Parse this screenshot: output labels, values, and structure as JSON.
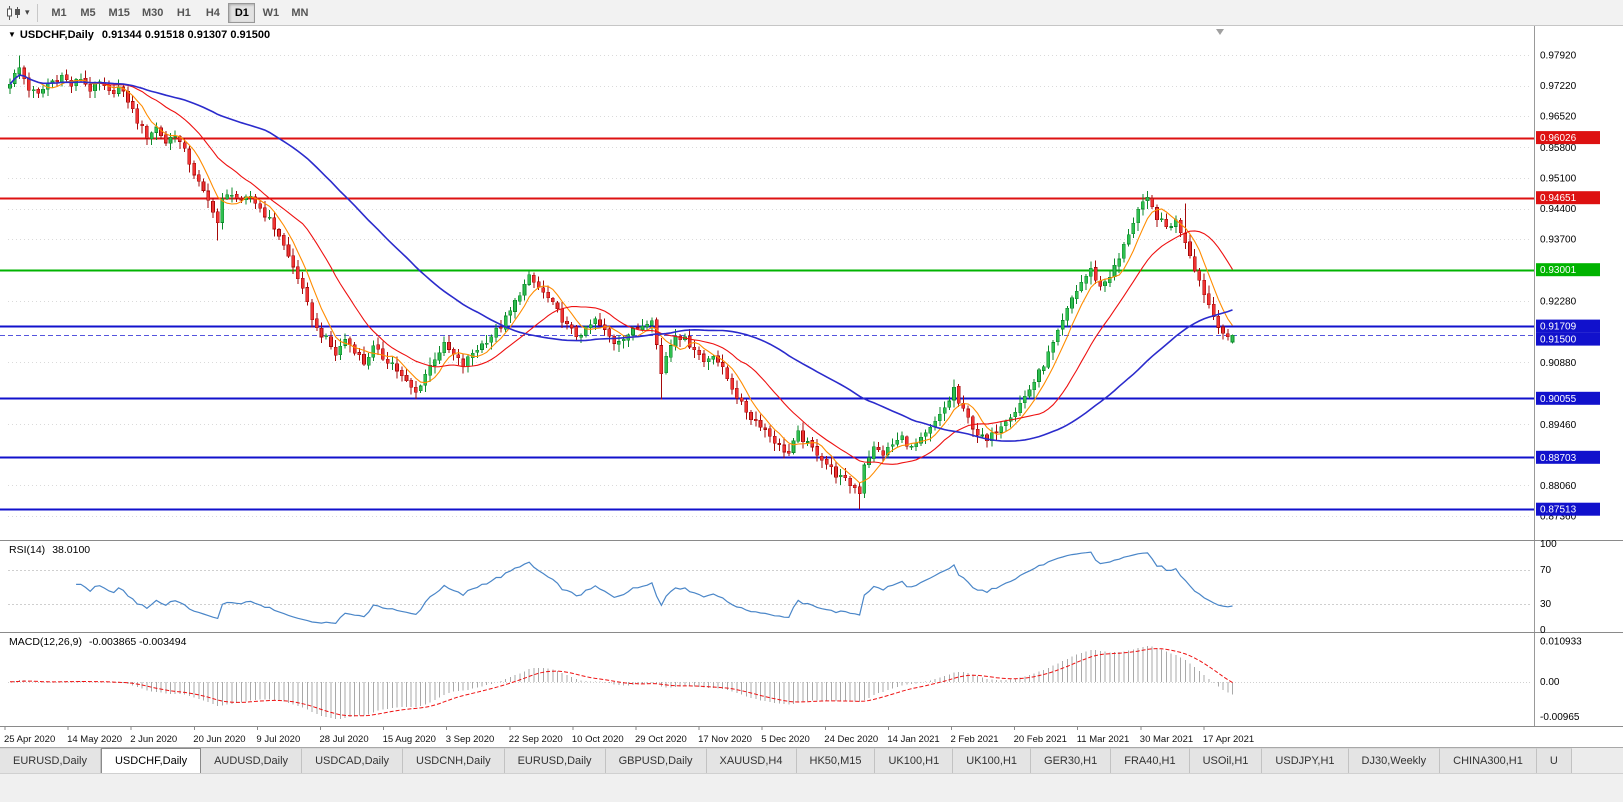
{
  "toolbar": {
    "timeframes": [
      "M1",
      "M5",
      "M15",
      "M30",
      "H1",
      "H4",
      "D1",
      "W1",
      "MN"
    ],
    "active_timeframe": "D1"
  },
  "chart_header": {
    "dropdown_caret": "▼",
    "symbol": "USDCHF,Daily",
    "ohlc_text": "0.91344 0.91518 0.91307 0.91500"
  },
  "rsi_panel": {
    "label": "RSI(14)",
    "value": "38.0100",
    "axis_labels": [
      "100",
      "70",
      "30",
      "0"
    ],
    "axis_values": [
      100,
      70,
      30,
      0
    ],
    "level_lines": [
      70,
      30
    ],
    "line_color": "#4a86c8"
  },
  "macd_panel": {
    "label": "MACD(12,26,9)",
    "values_text": "-0.003865 -0.003494",
    "axis_labels": [
      "0.010933",
      "0.00",
      "-0.00965"
    ],
    "axis_values": [
      0.010933,
      0,
      -0.00965
    ],
    "histogram_color": "#a9a9a9",
    "signal_color": "#ee1111"
  },
  "price_axis": {
    "labels": [
      "0.97920",
      "0.97220",
      "0.96520",
      "0.95800",
      "0.95100",
      "0.94400",
      "0.93700",
      "0.92280",
      "0.90880",
      "0.89460",
      "0.88060",
      "0.87360"
    ],
    "badges": [
      {
        "label": "0.96026",
        "price": 0.96026,
        "color": "#dd1111"
      },
      {
        "label": "0.94651",
        "price": 0.94651,
        "color": "#dd1111"
      },
      {
        "label": "0.93001",
        "price": 0.93001,
        "color": "#00b300"
      },
      {
        "label": "0.91709",
        "price": 0.91709,
        "color": "#1111cc"
      },
      {
        "label": "0.91500",
        "price": 0.915,
        "color": "#1111cc"
      },
      {
        "label": "0.90055",
        "price": 0.90055,
        "color": "#1111cc"
      },
      {
        "label": "0.88703",
        "price": 0.88703,
        "color": "#1111cc"
      },
      {
        "label": "0.87513",
        "price": 0.87513,
        "color": "#1111cc"
      }
    ]
  },
  "chart_data": {
    "type": "candlestick",
    "symbol": "USDCHF",
    "timeframe": "D1",
    "visible_range": {
      "start": "25 Apr 2020",
      "end": "17 Apr 2021"
    },
    "price_range": {
      "top": 0.984,
      "bottom": 0.869
    },
    "bars": 260,
    "last_candle": {
      "open": 0.91344,
      "high": 0.91518,
      "low": 0.91307,
      "close": 0.915
    },
    "close_anchors": [
      [
        0,
        0.973
      ],
      [
        2,
        0.9762
      ],
      [
        4,
        0.9715
      ],
      [
        6,
        0.97
      ],
      [
        8,
        0.9726
      ],
      [
        11,
        0.9744
      ],
      [
        13,
        0.9722
      ],
      [
        15,
        0.9739
      ],
      [
        17,
        0.9713
      ],
      [
        19,
        0.9727
      ],
      [
        21,
        0.9704
      ],
      [
        23,
        0.9717
      ],
      [
        25,
        0.9688
      ],
      [
        27,
        0.9641
      ],
      [
        29,
        0.9606
      ],
      [
        31,
        0.9626
      ],
      [
        33,
        0.9592
      ],
      [
        35,
        0.9612
      ],
      [
        37,
        0.9571
      ],
      [
        39,
        0.9521
      ],
      [
        41,
        0.9476
      ],
      [
        43,
        0.9438
      ],
      [
        44,
        0.9408
      ],
      [
        45,
        0.9458
      ],
      [
        47,
        0.9477
      ],
      [
        49,
        0.9452
      ],
      [
        51,
        0.9469
      ],
      [
        53,
        0.9441
      ],
      [
        55,
        0.9414
      ],
      [
        57,
        0.9379
      ],
      [
        59,
        0.9329
      ],
      [
        61,
        0.9283
      ],
      [
        63,
        0.9219
      ],
      [
        65,
        0.9164
      ],
      [
        67,
        0.9141
      ],
      [
        69,
        0.9106
      ],
      [
        71,
        0.9141
      ],
      [
        73,
        0.9117
      ],
      [
        75,
        0.9086
      ],
      [
        77,
        0.9121
      ],
      [
        79,
        0.9099
      ],
      [
        81,
        0.9086
      ],
      [
        83,
        0.9054
      ],
      [
        85,
        0.9029
      ],
      [
        86,
        0.9018
      ],
      [
        88,
        0.9061
      ],
      [
        90,
        0.9099
      ],
      [
        92,
        0.9127
      ],
      [
        94,
        0.9104
      ],
      [
        96,
        0.9081
      ],
      [
        98,
        0.9109
      ],
      [
        100,
        0.9129
      ],
      [
        102,
        0.9149
      ],
      [
        104,
        0.9171
      ],
      [
        106,
        0.9204
      ],
      [
        108,
        0.9247
      ],
      [
        110,
        0.9281
      ],
      [
        112,
        0.9259
      ],
      [
        114,
        0.9234
      ],
      [
        116,
        0.9204
      ],
      [
        118,
        0.9171
      ],
      [
        120,
        0.9149
      ],
      [
        122,
        0.9161
      ],
      [
        124,
        0.9184
      ],
      [
        126,
        0.9159
      ],
      [
        128,
        0.9134
      ],
      [
        130,
        0.9147
      ],
      [
        132,
        0.9159
      ],
      [
        134,
        0.9174
      ],
      [
        136,
        0.9191
      ],
      [
        137,
        0.9128
      ],
      [
        138,
        0.9061
      ],
      [
        139,
        0.9104
      ],
      [
        141,
        0.9154
      ],
      [
        143,
        0.9139
      ],
      [
        145,
        0.9121
      ],
      [
        147,
        0.9089
      ],
      [
        149,
        0.9108
      ],
      [
        151,
        0.9071
      ],
      [
        153,
        0.9031
      ],
      [
        155,
        0.8991
      ],
      [
        157,
        0.8961
      ],
      [
        159,
        0.8946
      ],
      [
        161,
        0.8921
      ],
      [
        163,
        0.8896
      ],
      [
        165,
        0.8879
      ],
      [
        167,
        0.8924
      ],
      [
        169,
        0.8899
      ],
      [
        171,
        0.8881
      ],
      [
        173,
        0.8856
      ],
      [
        175,
        0.8831
      ],
      [
        177,
        0.8816
      ],
      [
        179,
        0.8801
      ],
      [
        180,
        0.8791
      ],
      [
        181,
        0.8856
      ],
      [
        183,
        0.8891
      ],
      [
        185,
        0.8879
      ],
      [
        187,
        0.8899
      ],
      [
        189,
        0.8916
      ],
      [
        191,
        0.8891
      ],
      [
        193,
        0.8909
      ],
      [
        195,
        0.8934
      ],
      [
        197,
        0.8964
      ],
      [
        199,
        0.9001
      ],
      [
        200,
        0.9029
      ],
      [
        201,
        0.8994
      ],
      [
        203,
        0.8959
      ],
      [
        205,
        0.8924
      ],
      [
        207,
        0.8906
      ],
      [
        209,
        0.8934
      ],
      [
        211,
        0.8959
      ],
      [
        213,
        0.8977
      ],
      [
        215,
        0.9009
      ],
      [
        217,
        0.9044
      ],
      [
        219,
        0.9084
      ],
      [
        221,
        0.9129
      ],
      [
        223,
        0.9179
      ],
      [
        225,
        0.9234
      ],
      [
        227,
        0.9271
      ],
      [
        229,
        0.9299
      ],
      [
        231,
        0.9261
      ],
      [
        233,
        0.9287
      ],
      [
        235,
        0.9324
      ],
      [
        237,
        0.9384
      ],
      [
        239,
        0.9437
      ],
      [
        241,
        0.9459
      ],
      [
        243,
        0.9421
      ],
      [
        245,
        0.9397
      ],
      [
        247,
        0.9411
      ],
      [
        249,
        0.9367
      ],
      [
        251,
        0.9304
      ],
      [
        253,
        0.9247
      ],
      [
        255,
        0.9194
      ],
      [
        257,
        0.9157
      ],
      [
        258,
        0.9139
      ],
      [
        259,
        0.915
      ]
    ],
    "wick_overrides": [
      {
        "bar": 2,
        "high": 0.9791
      },
      {
        "bar": 44,
        "low": 0.9367
      },
      {
        "bar": 86,
        "low": 0.9005
      },
      {
        "bar": 110,
        "high": 0.9297
      },
      {
        "bar": 138,
        "low": 0.9003
      },
      {
        "bar": 180,
        "low": 0.8752
      },
      {
        "bar": 200,
        "high": 0.9046
      },
      {
        "bar": 241,
        "high": 0.9473
      },
      {
        "bar": 249,
        "high": 0.9452
      }
    ],
    "horizontal_lines": [
      {
        "price": 0.96026,
        "color": "#dd1111",
        "width": 2,
        "style": "solid"
      },
      {
        "price": 0.94651,
        "color": "#dd1111",
        "width": 2,
        "style": "solid"
      },
      {
        "price": 0.93001,
        "color": "#00b300",
        "width": 2,
        "style": "solid"
      },
      {
        "price": 0.91709,
        "color": "#1111cc",
        "width": 2,
        "style": "solid"
      },
      {
        "price": 0.915,
        "color": "#5555dd",
        "width": 1,
        "style": "dashed"
      },
      {
        "price": 0.90055,
        "color": "#1111cc",
        "width": 2,
        "style": "solid"
      },
      {
        "price": 0.88703,
        "color": "#1111cc",
        "width": 2,
        "style": "solid"
      },
      {
        "price": 0.87513,
        "color": "#1111cc",
        "width": 2,
        "style": "solid"
      }
    ],
    "moving_averages": [
      {
        "period": 6,
        "color": "#ff8c00",
        "width": 1.1
      },
      {
        "period": 18,
        "color": "#ee1111",
        "width": 1.1
      },
      {
        "period": 55,
        "color": "#2b2bcc",
        "width": 1.6
      }
    ],
    "indicators": [
      {
        "name": "RSI",
        "period": 14,
        "last_value": 38.01
      },
      {
        "name": "MACD",
        "fast": 12,
        "slow": 26,
        "signal": 9,
        "last_macd": -0.003865,
        "last_signal": -0.003494
      }
    ],
    "x_axis_dates": [
      "25 Apr 2020",
      "14 May 2020",
      "2 Jun 2020",
      "20 Jun 2020",
      "9 Jul 2020",
      "28 Jul 2020",
      "15 Aug 2020",
      "3 Sep 2020",
      "22 Sep 2020",
      "10 Oct 2020",
      "29 Oct 2020",
      "17 Nov 2020",
      "5 Dec 2020",
      "24 Dec 2020",
      "14 Jan 2021",
      "2 Feb 2021",
      "20 Feb 2021",
      "11 Mar 2021",
      "30 Mar 2021",
      "17 Apr 2021"
    ],
    "candle_up_fill": "#2fbf4f",
    "candle_up_border": "#0c8a2b",
    "candle_down_fill": "#ee3333",
    "candle_down_border": "#a50a0a"
  },
  "tabs": {
    "items": [
      {
        "label": "EURUSD,Daily",
        "active": false
      },
      {
        "label": "USDCHF,Daily",
        "active": true
      },
      {
        "label": "AUDUSD,Daily",
        "active": false
      },
      {
        "label": "USDCAD,Daily",
        "active": false
      },
      {
        "label": "USDCNH,Daily",
        "active": false
      },
      {
        "label": "EURUSD,Daily",
        "active": false
      },
      {
        "label": "GBPUSD,Daily",
        "active": false
      },
      {
        "label": "XAUUSD,H4",
        "active": false
      },
      {
        "label": "HK50,M15",
        "active": false
      },
      {
        "label": "UK100,H1",
        "active": false
      },
      {
        "label": "UK100,H1",
        "active": false
      },
      {
        "label": "GER30,H1",
        "active": false
      },
      {
        "label": "FRA40,H1",
        "active": false
      },
      {
        "label": "USOil,H1",
        "active": false
      },
      {
        "label": "USDJPY,H1",
        "active": false
      },
      {
        "label": "DJ30,Weekly",
        "active": false
      },
      {
        "label": "CHINA300,H1",
        "active": false
      },
      {
        "label": "U",
        "active": false
      }
    ]
  }
}
